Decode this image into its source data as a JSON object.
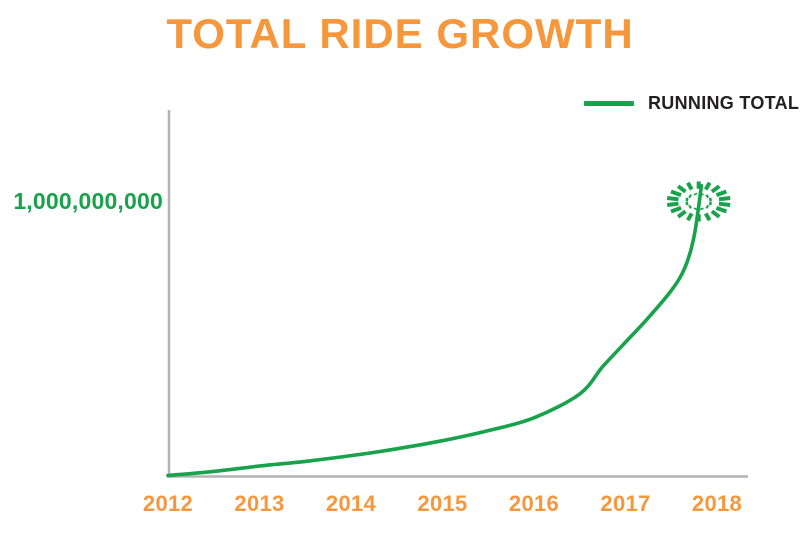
{
  "title": {
    "text": "TOTAL RIDE GROWTH"
  },
  "legend": {
    "label": "RUNNING TOTAL"
  },
  "y_axis": {
    "milestone_label": "1,000,000,000"
  },
  "x_axis": {
    "ticks": [
      "2012",
      "2013",
      "2014",
      "2015",
      "2016",
      "2017",
      "2018"
    ]
  },
  "colors": {
    "orange": "#F6973B",
    "green": "#17A24B",
    "axis_gray": "#B3B3B3",
    "text_dark": "#231F20",
    "background": "#FFFFFF"
  },
  "chart_data": {
    "type": "line",
    "title": "TOTAL RIDE GROWTH",
    "xlabel": "",
    "ylabel": "",
    "x_ticks": [
      2012,
      2013,
      2014,
      2015,
      2016,
      2017,
      2018
    ],
    "xlim": [
      2012,
      2018.34
    ],
    "ylim": [
      0,
      1350000000
    ],
    "grid": false,
    "legend_position": "top-right",
    "series": [
      {
        "name": "RUNNING TOTAL",
        "x": [
          2012,
          2012.5,
          2013,
          2013.5,
          2014,
          2014.5,
          2015,
          2015.5,
          2016,
          2016.5,
          2016.75,
          2017,
          2017.25,
          2017.5,
          2017.65,
          2017.75,
          2017.83
        ],
        "y": [
          0,
          15000000,
          35000000,
          52000000,
          73000000,
          98000000,
          128000000,
          165000000,
          212000000,
          300000000,
          400000000,
          490000000,
          580000000,
          680000000,
          765000000,
          880000000,
          1065000000
        ]
      }
    ],
    "milestone": {
      "x": 2017.8,
      "y": 1000000000,
      "label": "1,000,000,000",
      "marker": "firework-burst"
    }
  }
}
